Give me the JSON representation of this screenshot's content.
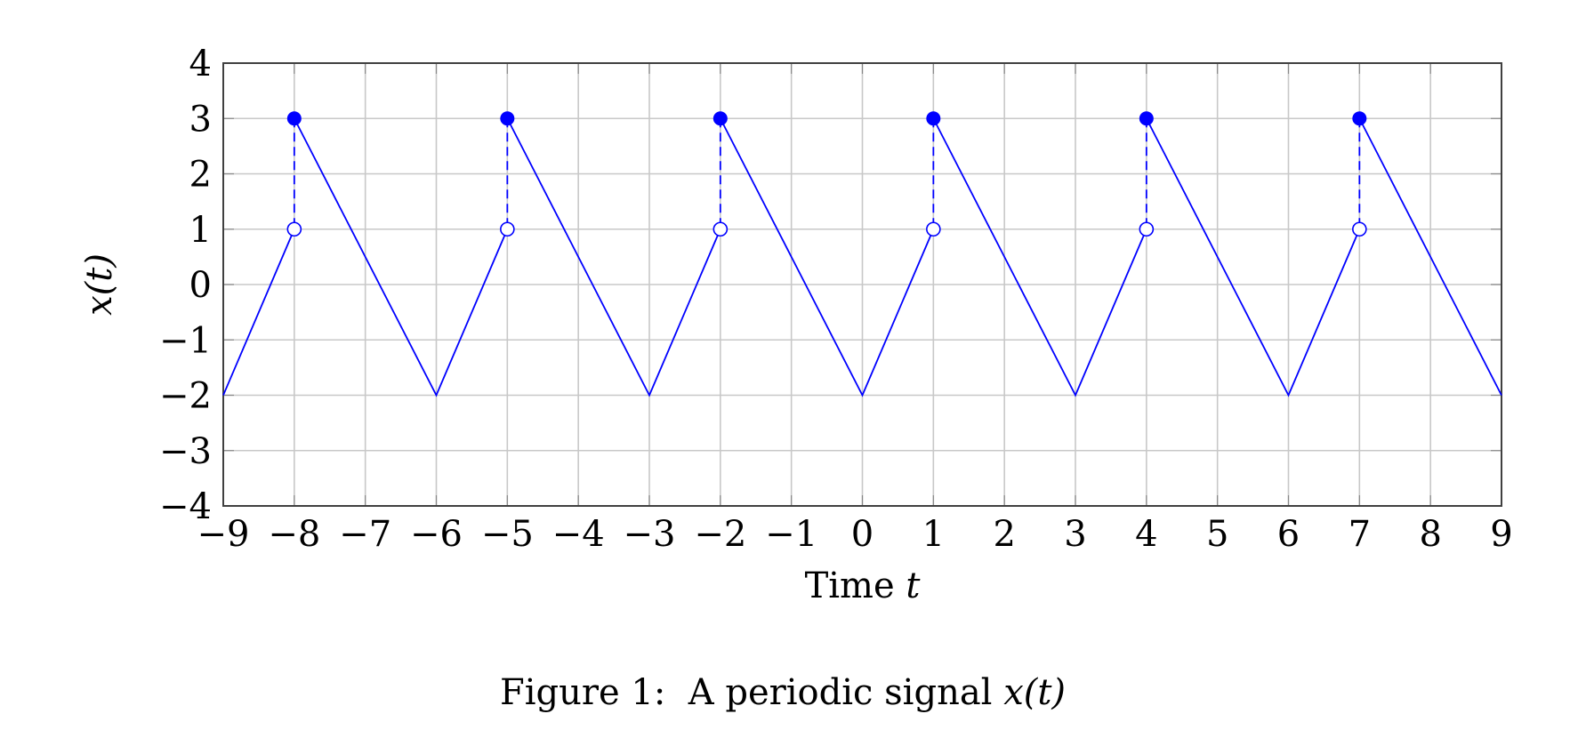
{
  "figure": {
    "caption_prefix": "Figure 1:",
    "caption_text": "A periodic signal",
    "caption_math": "x(t)"
  },
  "chart_data": {
    "type": "line",
    "title": "",
    "xlabel": "Time t",
    "ylabel": "x(t)",
    "xlim": [
      -9,
      9
    ],
    "ylim": [
      -4,
      4
    ],
    "grid": true,
    "legend": null,
    "x_ticks": [
      -9,
      -8,
      -7,
      -6,
      -5,
      -4,
      -3,
      -2,
      -1,
      0,
      1,
      2,
      3,
      4,
      5,
      6,
      7,
      8,
      9
    ],
    "y_ticks": [
      -4,
      -3,
      -2,
      -1,
      0,
      1,
      2,
      3,
      4
    ],
    "series": [
      {
        "name": "x(t)",
        "color": "#0000ff",
        "style": "solid",
        "segments": [
          [
            [
              -9,
              -2
            ],
            [
              -8,
              1
            ]
          ],
          [
            [
              -8,
              3
            ],
            [
              -6,
              -2
            ],
            [
              -5,
              1
            ]
          ],
          [
            [
              -5,
              3
            ],
            [
              -3,
              -2
            ],
            [
              -2,
              1
            ]
          ],
          [
            [
              -2,
              3
            ],
            [
              0,
              -2
            ],
            [
              1,
              1
            ]
          ],
          [
            [
              1,
              3
            ],
            [
              3,
              -2
            ],
            [
              4,
              1
            ]
          ],
          [
            [
              4,
              3
            ],
            [
              6,
              -2
            ],
            [
              7,
              1
            ]
          ],
          [
            [
              7,
              3
            ],
            [
              9,
              -2
            ]
          ]
        ]
      }
    ],
    "discontinuities": [
      {
        "t": -8,
        "closed": 3,
        "open": 1
      },
      {
        "t": -5,
        "closed": 3,
        "open": 1
      },
      {
        "t": -2,
        "closed": 3,
        "open": 1
      },
      {
        "t": 1,
        "closed": 3,
        "open": 1
      },
      {
        "t": 4,
        "closed": 3,
        "open": 1
      },
      {
        "t": 7,
        "closed": 3,
        "open": 1
      }
    ],
    "period": 3,
    "annotations": [
      "filled dot at value 3, open circle at value 1, dashed vertical jump line at each discontinuity"
    ]
  },
  "colors": {
    "signal": "#0000ff",
    "grid": "#c8c8c8",
    "axis": "#404040"
  }
}
